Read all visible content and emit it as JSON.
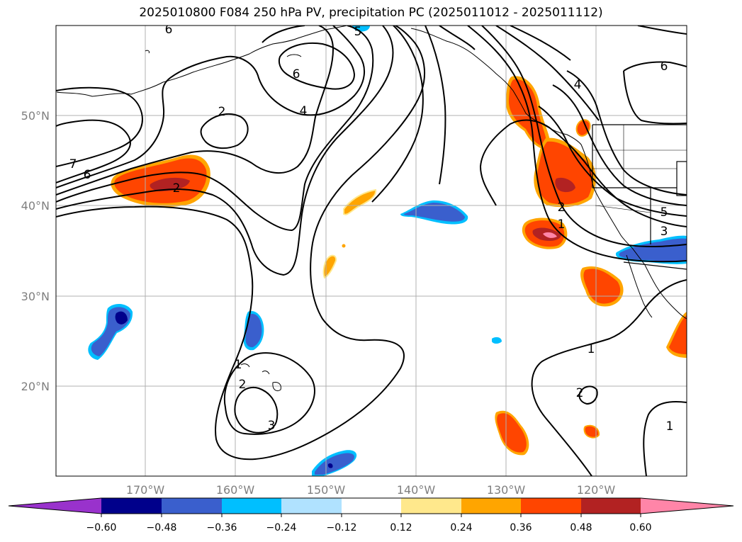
{
  "title": "2025010800 F084 250 hPa PV, precipitation PC (2025011012 - 2025011112)",
  "map": {
    "lat_labels": [
      "50°N",
      "40°N",
      "30°N",
      "20°N"
    ],
    "lon_labels": [
      "170°W",
      "160°W",
      "150°W",
      "140°W",
      "130°W",
      "120°W"
    ],
    "pv_contour_labels": [
      "6",
      "5",
      "6",
      "4",
      "7",
      "6",
      "2",
      "2",
      "4",
      "6",
      "5",
      "3",
      "1",
      "2",
      "2",
      "1",
      "3",
      "1",
      "2",
      "1"
    ]
  },
  "colorbar": {
    "ticks": [
      "−0.60",
      "−0.48",
      "−0.36",
      "−0.24",
      "−0.12",
      "0.12",
      "0.24",
      "0.36",
      "0.48",
      "0.60"
    ],
    "colors": [
      "#9932cc",
      "#00008b",
      "#3a5fcd",
      "#00bfff",
      "#b0e2ff",
      "#ffffff",
      "#ffe88c",
      "#ffa500",
      "#ff4500",
      "#b22222",
      "#ff85a8"
    ]
  }
}
